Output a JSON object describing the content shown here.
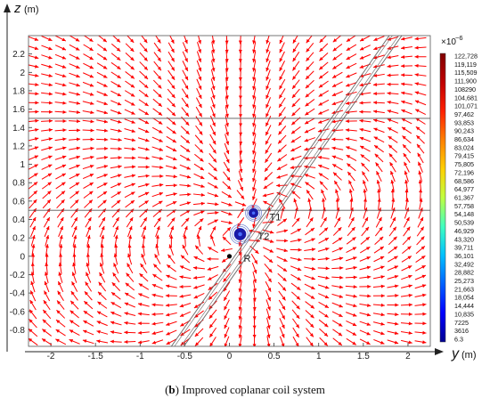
{
  "caption": {
    "label": "b",
    "text": "Improved coplanar coil system"
  },
  "chart_data": {
    "type": "vector_field",
    "xlabel": "y",
    "xunit": "(m)",
    "ylabel": "z",
    "yunit": "(m)",
    "xlim": [
      -2.25,
      2.25
    ],
    "ylim": [
      -0.98,
      2.4
    ],
    "xticks": [
      "-2",
      "-1.5",
      "-1",
      "-0.5",
      "0",
      "0.5",
      "1",
      "1.5",
      "2"
    ],
    "xtick_values": [
      -2,
      -1.5,
      -1,
      -0.5,
      0,
      0.5,
      1,
      1.5,
      2
    ],
    "yticks": [
      "-0.8",
      "-0.6",
      "-0.4",
      "-0.2",
      "0",
      "0.2",
      "0.4",
      "0.6",
      "0.8",
      "1",
      "1.2",
      "1.4",
      "1.6",
      "1.8",
      "2",
      "2.2"
    ],
    "ytick_values": [
      -0.8,
      -0.6,
      -0.4,
      -0.2,
      0,
      0.2,
      0.4,
      0.6,
      0.8,
      1,
      1.2,
      1.4,
      1.6,
      1.8,
      2,
      2.2
    ],
    "layer_boundaries": [
      0.5,
      1.5
    ],
    "borehole": {
      "bottom_center_y": -0.58,
      "top_center_y": 1.86,
      "z_bottom": -0.98,
      "z_top": 2.4,
      "half_width": 0.07,
      "inner_offset": 0.035
    },
    "arrow_color": "#ff0000",
    "coil_color": "#1a1aa8",
    "points": [
      {
        "name": "T1",
        "y": 0.27,
        "z": 0.47,
        "radius": 0.07
      },
      {
        "name": "T2",
        "y": 0.12,
        "z": 0.24,
        "radius": 0.09
      },
      {
        "name": "R",
        "y": 0.0,
        "z": 0.0
      }
    ],
    "colorbar": {
      "multiplier": "×10",
      "exponent": "−6",
      "tick_labels": [
        "122,728",
        "119,119",
        "115,509",
        "111,900",
        "108290",
        "104,681",
        "101,071",
        "97,462",
        "93,853",
        "90,243",
        "86,634",
        "83,024",
        "79,415",
        "75,805",
        "72,196",
        "68,586",
        "64,977",
        "61,367",
        "57,758",
        "54,148",
        "50,539",
        "46,929",
        "43,320",
        "39,711",
        "36,101",
        "32,492",
        "28,882",
        "25,273",
        "21,663",
        "18,054",
        "14,444",
        "10,835",
        "7225",
        "3616",
        "6.3"
      ],
      "colormap": [
        "#800000",
        "#c00000",
        "#ff2000",
        "#ff8000",
        "#ffd000",
        "#c0ff40",
        "#40ffc0",
        "#00c0ff",
        "#0060ff",
        "#0000ff",
        "#000090"
      ]
    }
  }
}
